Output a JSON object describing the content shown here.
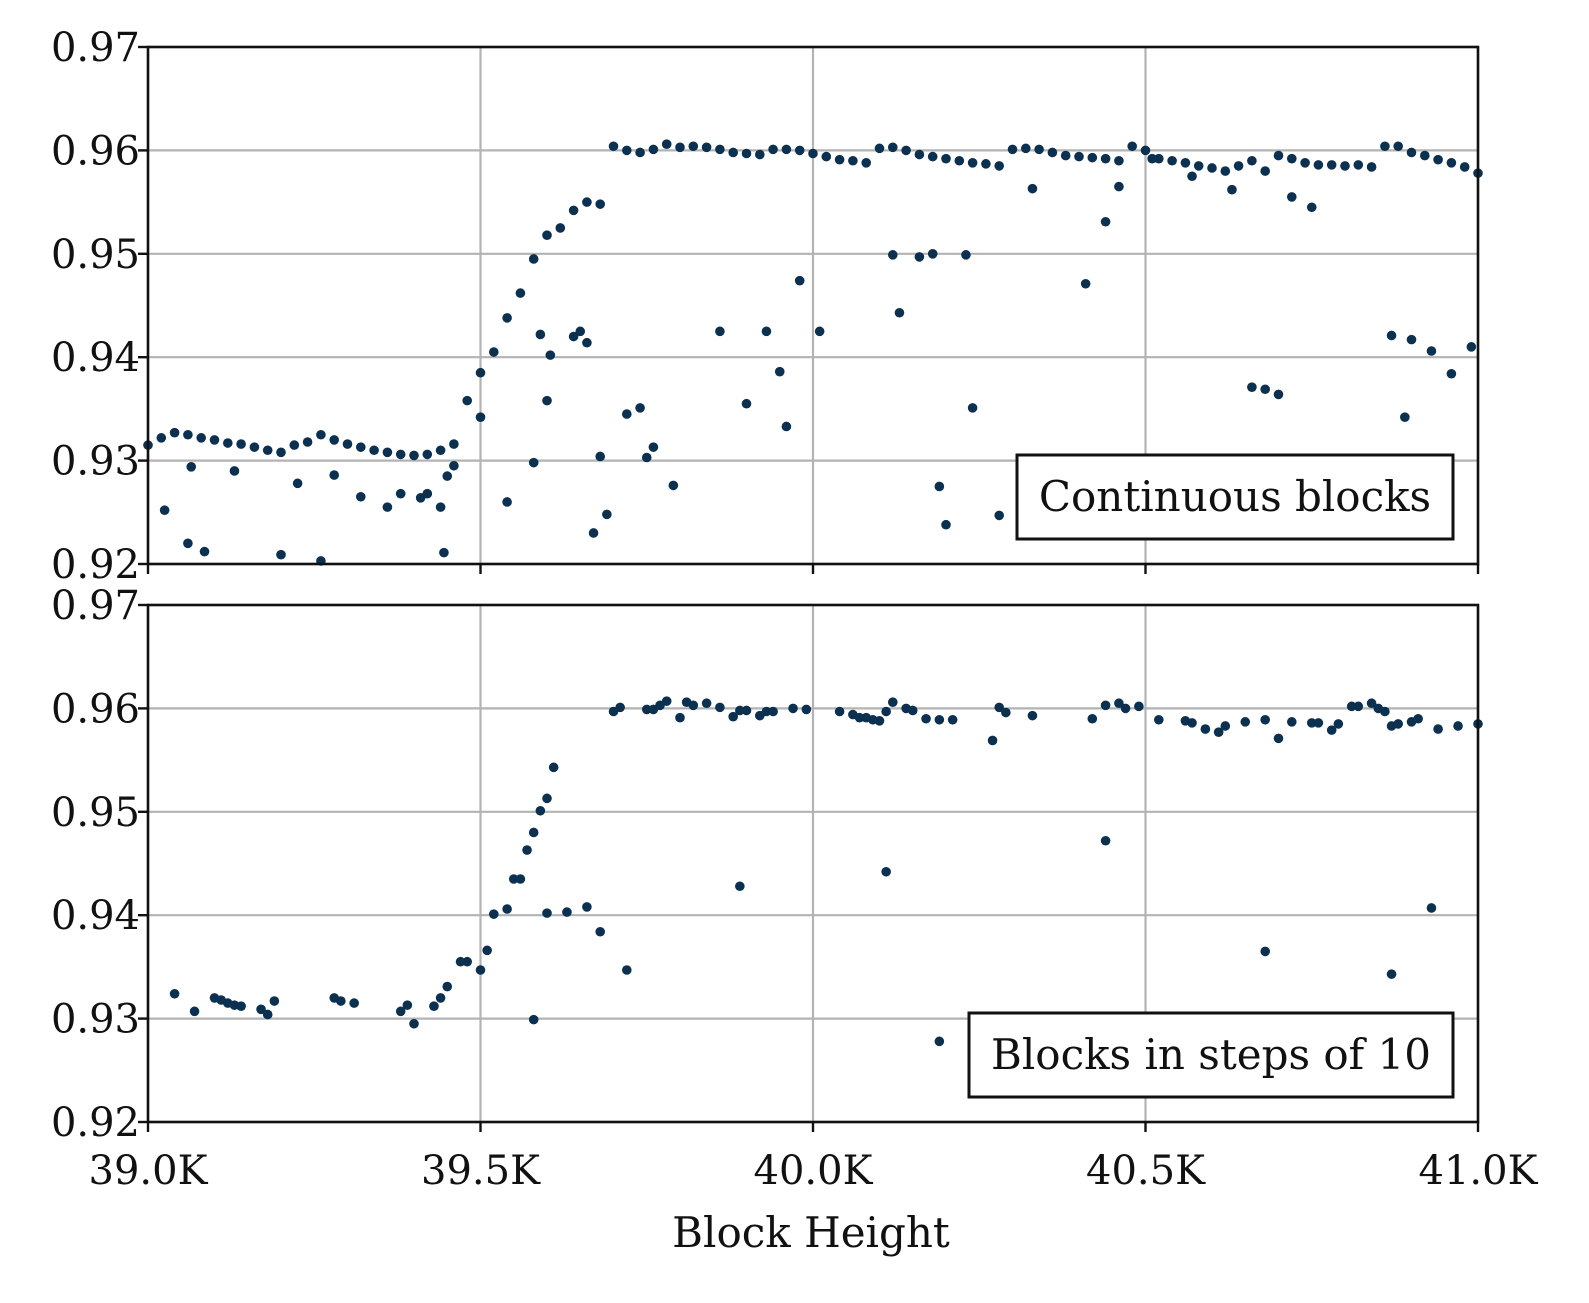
{
  "chart_data": [
    {
      "type": "scatter",
      "legend_label": "Continuous blocks",
      "legend_position": "bottom-right",
      "xlim": [
        39000,
        41000
      ],
      "ylim": [
        0.92,
        0.97
      ],
      "xticks": [
        39000,
        39500,
        40000,
        40500,
        41000
      ],
      "yticks": [
        0.92,
        0.93,
        0.94,
        0.95,
        0.96,
        0.97
      ],
      "ytick_labels": [
        "0.92",
        "0.93",
        "0.94",
        "0.95",
        "0.96",
        "0.97"
      ],
      "grid": true,
      "color": "#0b3050",
      "main_series": {
        "x": [
          39000,
          39020,
          39040,
          39060,
          39080,
          39100,
          39120,
          39140,
          39160,
          39180,
          39200,
          39220,
          39240,
          39260,
          39280,
          39300,
          39320,
          39340,
          39360,
          39380,
          39400,
          39420,
          39440,
          39460,
          39480,
          39500,
          39520,
          39540,
          39560,
          39580,
          39600,
          39620,
          39640,
          39660,
          39680,
          39700,
          39720,
          39740,
          39760,
          39780,
          39800,
          39820,
          39840,
          39860,
          39880,
          39900,
          39920,
          39940,
          39960,
          39980,
          40000,
          40020,
          40040,
          40060,
          40080,
          40100,
          40120,
          40140,
          40160,
          40180,
          40200,
          40220,
          40240,
          40260,
          40280,
          40300,
          40320,
          40340,
          40360,
          40380,
          40400,
          40420,
          40440,
          40460,
          40480,
          40500,
          40520,
          40540,
          40560,
          40580,
          40600,
          40620,
          40640,
          40660,
          40680,
          40700,
          40720,
          40740,
          40760,
          40780,
          40800,
          40820,
          40840,
          40860,
          40880,
          40900,
          40920,
          40940,
          40960,
          40980,
          41000
        ],
        "y": [
          0.9315,
          0.9322,
          0.9327,
          0.9325,
          0.9322,
          0.932,
          0.9317,
          0.9316,
          0.9313,
          0.931,
          0.9308,
          0.9315,
          0.9318,
          0.9325,
          0.932,
          0.9316,
          0.9313,
          0.931,
          0.9308,
          0.9306,
          0.9305,
          0.9306,
          0.931,
          0.9316,
          0.9358,
          0.9385,
          0.9405,
          0.9438,
          0.9462,
          0.9495,
          0.9518,
          0.9525,
          0.9542,
          0.955,
          0.9548,
          0.9604,
          0.96,
          0.9598,
          0.9601,
          0.9606,
          0.9603,
          0.9604,
          0.9603,
          0.9601,
          0.9598,
          0.9597,
          0.9596,
          0.9601,
          0.9601,
          0.96,
          0.9597,
          0.9594,
          0.9591,
          0.959,
          0.9588,
          0.9602,
          0.9603,
          0.96,
          0.9596,
          0.9594,
          0.9592,
          0.959,
          0.9588,
          0.9587,
          0.9585,
          0.9601,
          0.9602,
          0.9601,
          0.9598,
          0.9595,
          0.9594,
          0.9593,
          0.9592,
          0.959,
          0.9604,
          0.96,
          0.9592,
          0.959,
          0.9588,
          0.9585,
          0.9583,
          0.958,
          0.9585,
          0.959,
          0.958,
          0.9595,
          0.9592,
          0.9588,
          0.9586,
          0.9586,
          0.9585,
          0.9586,
          0.9584,
          0.9604,
          0.9604,
          0.9598,
          0.9595,
          0.9591,
          0.9588,
          0.9584,
          0.9578
        ]
      },
      "outliers": {
        "x": [
          39025,
          39060,
          39065,
          39085,
          39130,
          39200,
          39225,
          39260,
          39280,
          39320,
          39360,
          39380,
          39410,
          39420,
          39440,
          39445,
          39450,
          39460,
          39500,
          39540,
          39580,
          39590,
          39600,
          39605,
          39640,
          39650,
          39660,
          39670,
          39680,
          39690,
          39720,
          39740,
          39750,
          39760,
          39790,
          39860,
          39900,
          39930,
          39950,
          39960,
          39980,
          40010,
          40120,
          40130,
          40160,
          40180,
          40190,
          40200,
          40230,
          40240,
          40280,
          40330,
          40410,
          40440,
          40460,
          40510,
          40570,
          40630,
          40660,
          40680,
          40700,
          40720,
          40750,
          40870,
          40890,
          40900,
          40930,
          40960,
          40990
        ],
        "y": [
          0.9252,
          0.922,
          0.9294,
          0.9212,
          0.929,
          0.9209,
          0.9278,
          0.9203,
          0.9286,
          0.9265,
          0.9255,
          0.9268,
          0.9264,
          0.9268,
          0.9255,
          0.9211,
          0.9285,
          0.9295,
          0.9342,
          0.926,
          0.9298,
          0.9422,
          0.9358,
          0.9402,
          0.942,
          0.9425,
          0.9414,
          0.923,
          0.9304,
          0.9248,
          0.9345,
          0.9351,
          0.9303,
          0.9313,
          0.9276,
          0.9425,
          0.9355,
          0.9425,
          0.9386,
          0.9333,
          0.9474,
          0.9425,
          0.9499,
          0.9443,
          0.9497,
          0.95,
          0.9275,
          0.9238,
          0.9499,
          0.9351,
          0.9247,
          0.9563,
          0.9471,
          0.9531,
          0.9565,
          0.9592,
          0.9575,
          0.9562,
          0.9371,
          0.9369,
          0.9364,
          0.9555,
          0.9545,
          0.9421,
          0.9342,
          0.9417,
          0.9406,
          0.9384,
          0.941
        ]
      }
    },
    {
      "type": "scatter",
      "legend_label": "Blocks in steps of 10",
      "legend_position": "bottom-right",
      "xlim": [
        39000,
        41000
      ],
      "ylim": [
        0.92,
        0.97
      ],
      "xticks": [
        39000,
        39500,
        40000,
        40500,
        41000
      ],
      "xtick_labels": [
        "39.0K",
        "39.5K",
        "40.0K",
        "40.5K",
        "41.0K"
      ],
      "yticks": [
        0.92,
        0.93,
        0.94,
        0.95,
        0.96,
        0.97
      ],
      "ytick_labels": [
        "0.92",
        "0.93",
        "0.94",
        "0.95",
        "0.96",
        "0.97"
      ],
      "xlabel": "Block Height",
      "grid": true,
      "color": "#0b3050",
      "points": {
        "x": [
          39040,
          39070,
          39100,
          39110,
          39120,
          39130,
          39140,
          39170,
          39180,
          39190,
          39280,
          39290,
          39310,
          39380,
          39390,
          39400,
          39430,
          39440,
          39450,
          39470,
          39480,
          39500,
          39510,
          39520,
          39540,
          39550,
          39560,
          39570,
          39580,
          39590,
          39600,
          39610,
          39630,
          39660,
          39680,
          39700,
          39710,
          39750,
          39760,
          39770,
          39780,
          39800,
          39810,
          39820,
          39840,
          39860,
          39880,
          39890,
          39900,
          39920,
          39930,
          39940,
          39970,
          39990,
          40040,
          40060,
          40070,
          40080,
          40090,
          40100,
          40110,
          40120,
          40140,
          40150,
          40170,
          40190,
          40210,
          40270,
          40280,
          40290,
          40330,
          40420,
          40440,
          40460,
          40470,
          40490,
          40520,
          40560,
          40570,
          40590,
          40610,
          40620,
          40650,
          40680,
          40700,
          40720,
          40750,
          40760,
          40780,
          40790,
          40810,
          40820,
          40840,
          40850,
          40860,
          40870,
          40880,
          40900,
          40910,
          40940,
          40970,
          41000,
          39580,
          39600,
          39720,
          39890,
          40110,
          40190,
          40440,
          40680,
          40870,
          40930
        ],
        "y": [
          0.9324,
          0.9307,
          0.932,
          0.9318,
          0.9315,
          0.9313,
          0.9312,
          0.9309,
          0.9304,
          0.9317,
          0.932,
          0.9317,
          0.9315,
          0.9307,
          0.9313,
          0.9295,
          0.9312,
          0.932,
          0.9331,
          0.9355,
          0.9355,
          0.9347,
          0.9366,
          0.9401,
          0.9406,
          0.9435,
          0.9435,
          0.9463,
          0.948,
          0.9501,
          0.9513,
          0.9543,
          0.9403,
          0.9408,
          0.9384,
          0.9597,
          0.9601,
          0.9599,
          0.9599,
          0.9603,
          0.9607,
          0.9591,
          0.9606,
          0.9603,
          0.9605,
          0.9601,
          0.9592,
          0.9598,
          0.9598,
          0.9593,
          0.9597,
          0.9597,
          0.96,
          0.9599,
          0.9597,
          0.9594,
          0.9591,
          0.9591,
          0.9589,
          0.9588,
          0.9597,
          0.9606,
          0.96,
          0.9598,
          0.959,
          0.9589,
          0.9589,
          0.9569,
          0.9601,
          0.9596,
          0.9593,
          0.959,
          0.9603,
          0.9605,
          0.96,
          0.9602,
          0.9589,
          0.9588,
          0.9586,
          0.958,
          0.9577,
          0.9583,
          0.9587,
          0.9589,
          0.9571,
          0.9587,
          0.9586,
          0.9586,
          0.9579,
          0.9585,
          0.9602,
          0.9602,
          0.9605,
          0.96,
          0.9597,
          0.9583,
          0.9585,
          0.9587,
          0.959,
          0.958,
          0.9583,
          0.9585,
          0.9299,
          0.9402,
          0.9347,
          0.9428,
          0.9442,
          0.9278,
          0.9472,
          0.9365,
          0.9343,
          0.9407
        ]
      }
    }
  ]
}
